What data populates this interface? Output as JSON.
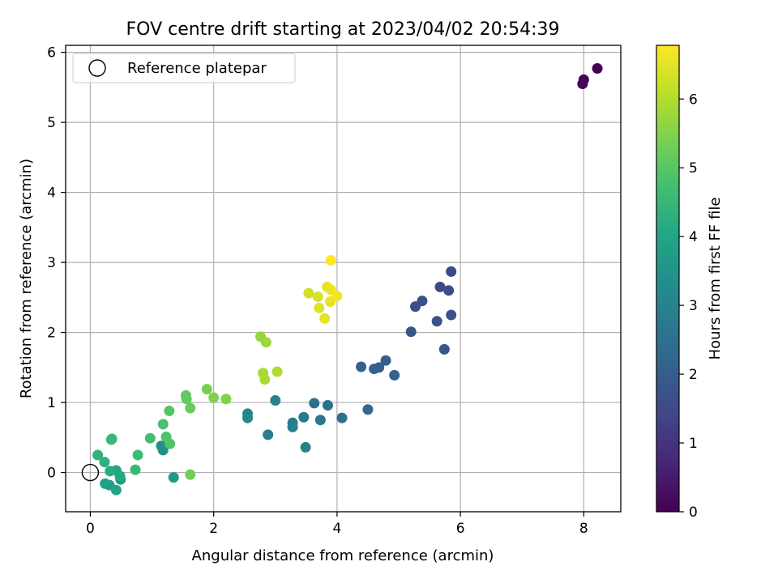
{
  "chart_data": {
    "type": "scatter",
    "title": "FOV centre drift starting at 2023/04/02 20:54:39",
    "xlabel": "Angular distance from reference (arcmin)",
    "ylabel": "Rotation from reference (arcmin)",
    "xlim": [
      -0.4,
      8.6
    ],
    "ylim": [
      -0.56,
      6.1
    ],
    "xticks": [
      0,
      2,
      4,
      6,
      8
    ],
    "yticks": [
      0,
      1,
      2,
      3,
      4,
      5,
      6
    ],
    "grid": true,
    "legend": {
      "placement": "upper-left",
      "entries": [
        "Reference platepar"
      ]
    },
    "reference_point": {
      "x": 0,
      "y": 0,
      "marker": "open-circle",
      "label": "Reference platepar"
    },
    "colorbar": {
      "label": "Hours from first FF file",
      "colormap": "viridis",
      "range": [
        0,
        6.78
      ],
      "ticks": [
        0,
        1,
        2,
        3,
        4,
        5,
        6
      ]
    },
    "points": [
      {
        "x": 8.22,
        "y": 5.77,
        "c": 0.0
      },
      {
        "x": 8.0,
        "y": 5.61,
        "c": 0.05
      },
      {
        "x": 7.98,
        "y": 5.55,
        "c": 0.1
      },
      {
        "x": 5.85,
        "y": 2.87,
        "c": 1.5
      },
      {
        "x": 5.67,
        "y": 2.65,
        "c": 1.5
      },
      {
        "x": 5.81,
        "y": 2.6,
        "c": 1.55
      },
      {
        "x": 5.38,
        "y": 2.45,
        "c": 1.6
      },
      {
        "x": 5.27,
        "y": 2.37,
        "c": 1.6
      },
      {
        "x": 5.85,
        "y": 2.25,
        "c": 1.65
      },
      {
        "x": 5.62,
        "y": 2.16,
        "c": 1.7
      },
      {
        "x": 5.2,
        "y": 2.01,
        "c": 1.8
      },
      {
        "x": 5.74,
        "y": 1.76,
        "c": 1.85
      },
      {
        "x": 4.79,
        "y": 1.6,
        "c": 2.0
      },
      {
        "x": 4.39,
        "y": 1.51,
        "c": 2.05
      },
      {
        "x": 4.68,
        "y": 1.5,
        "c": 2.05
      },
      {
        "x": 4.6,
        "y": 1.48,
        "c": 2.1
      },
      {
        "x": 4.93,
        "y": 1.39,
        "c": 2.15
      },
      {
        "x": 4.5,
        "y": 0.9,
        "c": 2.25
      },
      {
        "x": 4.08,
        "y": 0.78,
        "c": 2.5
      },
      {
        "x": 3.63,
        "y": 0.99,
        "c": 2.45
      },
      {
        "x": 3.85,
        "y": 0.96,
        "c": 2.5
      },
      {
        "x": 3.73,
        "y": 0.75,
        "c": 2.65
      },
      {
        "x": 3.46,
        "y": 0.79,
        "c": 2.75
      },
      {
        "x": 3.28,
        "y": 0.71,
        "c": 2.85
      },
      {
        "x": 3.28,
        "y": 0.65,
        "c": 2.9
      },
      {
        "x": 3.0,
        "y": 1.03,
        "c": 3.0
      },
      {
        "x": 2.55,
        "y": 0.84,
        "c": 3.05
      },
      {
        "x": 2.55,
        "y": 0.78,
        "c": 3.1
      },
      {
        "x": 2.88,
        "y": 0.54,
        "c": 2.85
      },
      {
        "x": 3.49,
        "y": 0.36,
        "c": 2.95
      },
      {
        "x": 1.15,
        "y": 0.38,
        "c": 3.3
      },
      {
        "x": 1.18,
        "y": 0.32,
        "c": 3.4
      },
      {
        "x": 1.35,
        "y": -0.07,
        "c": 3.6
      },
      {
        "x": 0.49,
        "y": -0.1,
        "c": 3.75
      },
      {
        "x": 0.31,
        "y": -0.18,
        "c": 3.8
      },
      {
        "x": 0.24,
        "y": -0.16,
        "c": 3.85
      },
      {
        "x": 0.42,
        "y": -0.25,
        "c": 3.95
      },
      {
        "x": 0.42,
        "y": 0.03,
        "c": 4.0
      },
      {
        "x": 0.48,
        "y": -0.05,
        "c": 4.05
      },
      {
        "x": 0.32,
        "y": 0.02,
        "c": 4.15
      },
      {
        "x": 0.23,
        "y": 0.15,
        "c": 4.3
      },
      {
        "x": 0.12,
        "y": 0.25,
        "c": 4.4
      },
      {
        "x": 0.34,
        "y": 0.47,
        "c": 4.45
      },
      {
        "x": 0.35,
        "y": 0.48,
        "c": 4.5
      },
      {
        "x": 0.73,
        "y": 0.04,
        "c": 4.55
      },
      {
        "x": 0.77,
        "y": 0.25,
        "c": 4.6
      },
      {
        "x": 0.97,
        "y": 0.49,
        "c": 4.7
      },
      {
        "x": 1.18,
        "y": 0.69,
        "c": 4.8
      },
      {
        "x": 1.23,
        "y": 0.51,
        "c": 4.85
      },
      {
        "x": 1.29,
        "y": 0.41,
        "c": 4.9
      },
      {
        "x": 1.28,
        "y": 0.88,
        "c": 4.95
      },
      {
        "x": 1.55,
        "y": 1.1,
        "c": 5.1
      },
      {
        "x": 1.56,
        "y": 1.05,
        "c": 5.15
      },
      {
        "x": 1.62,
        "y": 0.92,
        "c": 5.2
      },
      {
        "x": 1.62,
        "y": -0.03,
        "c": 5.3
      },
      {
        "x": 1.89,
        "y": 1.19,
        "c": 5.35
      },
      {
        "x": 2.0,
        "y": 1.07,
        "c": 5.45
      },
      {
        "x": 2.2,
        "y": 1.05,
        "c": 5.5
      },
      {
        "x": 2.76,
        "y": 1.94,
        "c": 5.7
      },
      {
        "x": 2.85,
        "y": 1.86,
        "c": 5.75
      },
      {
        "x": 2.8,
        "y": 1.42,
        "c": 5.85
      },
      {
        "x": 2.83,
        "y": 1.33,
        "c": 5.9
      },
      {
        "x": 3.03,
        "y": 1.44,
        "c": 5.95
      },
      {
        "x": 3.54,
        "y": 2.56,
        "c": 6.3
      },
      {
        "x": 3.69,
        "y": 2.51,
        "c": 6.4
      },
      {
        "x": 3.71,
        "y": 2.35,
        "c": 6.45
      },
      {
        "x": 3.8,
        "y": 2.2,
        "c": 6.5
      },
      {
        "x": 3.84,
        "y": 2.65,
        "c": 6.55
      },
      {
        "x": 3.89,
        "y": 2.44,
        "c": 6.55
      },
      {
        "x": 3.9,
        "y": 2.61,
        "c": 6.6
      },
      {
        "x": 4.0,
        "y": 2.52,
        "c": 6.65
      },
      {
        "x": 3.9,
        "y": 3.03,
        "c": 6.78
      }
    ]
  }
}
